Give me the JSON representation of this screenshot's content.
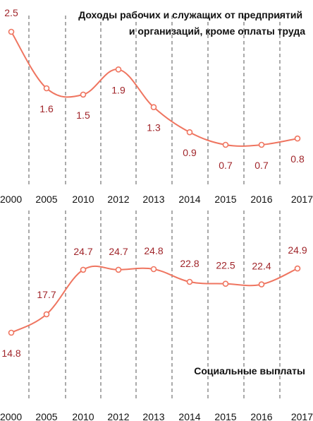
{
  "colors": {
    "line": "#ef7560",
    "label": "#a0252a",
    "grid": "#555555"
  },
  "chart_data": [
    {
      "type": "line",
      "title": [
        "Доходы рабочих и служащих от предприятий",
        "и организаций, кроме оплаты труда"
      ],
      "categories": [
        "2000",
        "2005",
        "2010",
        "2012",
        "2013",
        "2014",
        "2015",
        "2016",
        "2017"
      ],
      "values": [
        2.5,
        1.6,
        1.5,
        1.9,
        1.3,
        0.9,
        0.7,
        0.7,
        0.8
      ],
      "data_labels": [
        "2.5",
        "1.6",
        "1.5",
        "1.9",
        "1.3",
        "0.9",
        "0.7",
        "0.7",
        "0.8"
      ],
      "grid": "vertical-dashed",
      "legend": "none"
    },
    {
      "type": "line",
      "title": [
        "Социальные выплаты"
      ],
      "categories": [
        "2000",
        "2005",
        "2010",
        "2012",
        "2013",
        "2014",
        "2015",
        "2016",
        "2017"
      ],
      "values": [
        14.8,
        17.7,
        24.7,
        24.7,
        24.8,
        22.8,
        22.5,
        22.4,
        24.9
      ],
      "data_labels": [
        "14.8",
        "17.7",
        "24.7",
        "24.7",
        "24.8",
        "22.8",
        "22.5",
        "22.4",
        "24.9"
      ],
      "grid": "vertical-dashed",
      "legend": "none"
    }
  ]
}
